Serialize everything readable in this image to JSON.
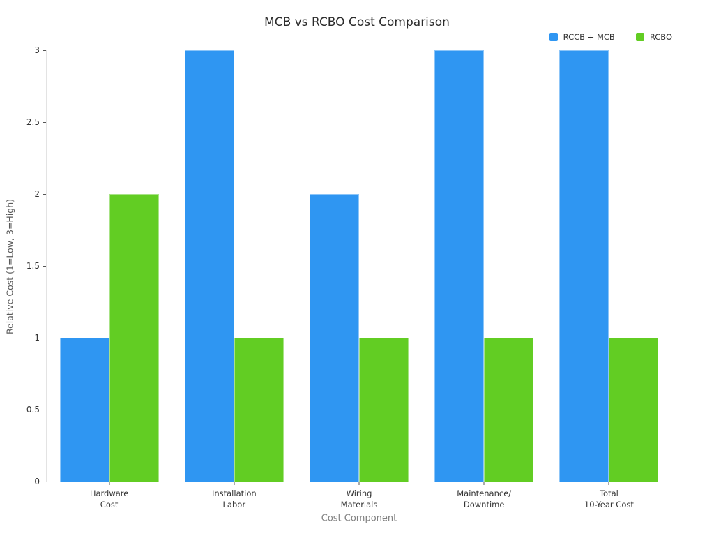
{
  "chart_data": {
    "type": "bar",
    "title": "MCB vs RCBO Cost Comparison",
    "xlabel": "Cost Component",
    "ylabel": "Relative Cost (1=Low, 3=High)",
    "categories": [
      "Hardware\nCost",
      "Installation\nLabor",
      "Wiring\nMaterials",
      "Maintenance/\nDowntime",
      "Total\n10-Year Cost"
    ],
    "series": [
      {
        "name": "RCCB + MCB",
        "color": "#2F96F2",
        "values": [
          1,
          3,
          2,
          3,
          3
        ]
      },
      {
        "name": "RCBO",
        "color": "#62CD23",
        "values": [
          2,
          1,
          1,
          1,
          1
        ]
      }
    ],
    "ylim": [
      0,
      3
    ],
    "yticks": [
      "0",
      "0.5",
      "1",
      "1.5",
      "2",
      "2.5",
      "3"
    ],
    "grid": false,
    "legend_position": "top-right",
    "colors": {
      "title_text": "#2b2b2b",
      "axis_line": "#d8d8d8",
      "tick_text": "#333333",
      "axis_title_text": "#5a5a5a"
    }
  }
}
